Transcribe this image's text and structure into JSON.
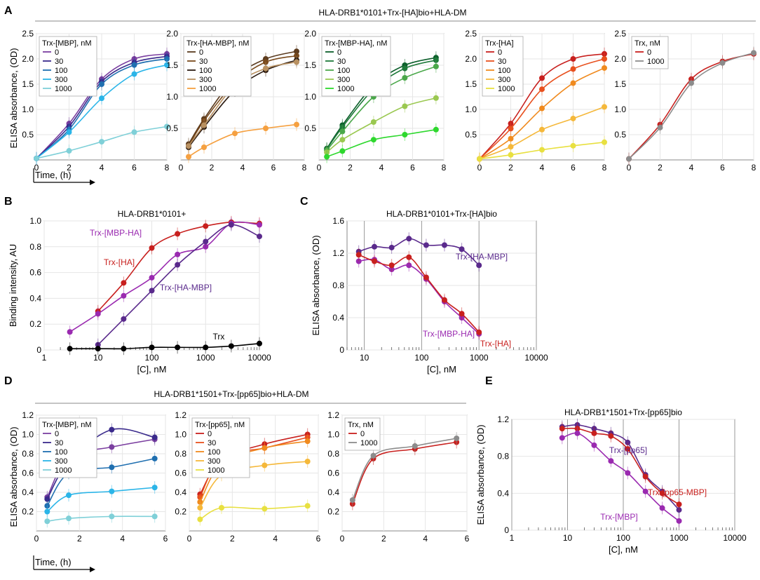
{
  "figure": {
    "panel_labels": [
      "A",
      "B",
      "C",
      "D",
      "E"
    ],
    "group_headers": {
      "A": "HLA-DRB1*0101+Trx-[HA]bio+HLA-DM",
      "D": "HLA-DRB1*1501+Trx-[pp65]bio+HLA-DM"
    },
    "shared_axis_labels": {
      "ylabel_A": "ELISA absorbance, (OD)",
      "ylabel_D": "ELISA absorbance, (OD)",
      "xlabel_A": "Time, (h)",
      "xlabel_D": "Time, (h)"
    }
  },
  "chart_data": [
    {
      "id": "A1",
      "type": "line",
      "title": "",
      "xlabel": "",
      "ylabel": "",
      "xlim": [
        0,
        8
      ],
      "ylim": [
        0,
        2.5
      ],
      "xticks": [
        "0",
        "2",
        "4",
        "6",
        "8"
      ],
      "yticks": [
        "0.5",
        "1.0",
        "1.5",
        "2.0",
        "2.5"
      ],
      "legend_title": "Trx-[MBP], nM",
      "series": [
        {
          "name": "0",
          "color": "#7b3fa0",
          "x": [
            0,
            2,
            4,
            6,
            8
          ],
          "y": [
            0.03,
            0.72,
            1.6,
            2.0,
            2.1
          ]
        },
        {
          "name": "30",
          "color": "#3a2a8c",
          "x": [
            0,
            2,
            4,
            6,
            8
          ],
          "y": [
            0.03,
            0.66,
            1.55,
            1.93,
            2.05
          ]
        },
        {
          "name": "100",
          "color": "#1f6fb0",
          "x": [
            0,
            2,
            4,
            6,
            8
          ],
          "y": [
            0.03,
            0.6,
            1.5,
            1.88,
            2.0
          ]
        },
        {
          "name": "300",
          "color": "#2bb5e8",
          "x": [
            0,
            2,
            4,
            6,
            8
          ],
          "y": [
            0.03,
            0.55,
            1.22,
            1.7,
            1.88
          ]
        },
        {
          "name": "1000",
          "color": "#7fd0d8",
          "x": [
            0,
            2,
            4,
            6,
            8
          ],
          "y": [
            0.03,
            0.18,
            0.36,
            0.55,
            0.66
          ]
        }
      ]
    },
    {
      "id": "A2",
      "type": "line",
      "title": "",
      "xlabel": "",
      "ylabel": "",
      "xlim": [
        0,
        8
      ],
      "ylim": [
        0,
        2.0
      ],
      "xticks": [
        "0",
        "2",
        "4",
        "6",
        "8"
      ],
      "yticks": [
        "0.5",
        "1.0",
        "1.5",
        "2.0"
      ],
      "legend_title": "Trx-[HA-MBP], nM",
      "series": [
        {
          "name": "0",
          "color": "#5a3a1e",
          "x": [
            0.5,
            1.5,
            3.5,
            5.5,
            7.5
          ],
          "y": [
            0.25,
            0.65,
            1.3,
            1.6,
            1.72
          ]
        },
        {
          "name": "30",
          "color": "#7a4a1c",
          "x": [
            0.5,
            1.5,
            3.5,
            5.5,
            7.5
          ],
          "y": [
            0.22,
            0.62,
            1.22,
            1.55,
            1.65
          ]
        },
        {
          "name": "100",
          "color": "#2a1a10",
          "x": [
            0.5,
            1.5,
            3.5,
            5.5,
            7.5
          ],
          "y": [
            0.2,
            0.52,
            1.1,
            1.42,
            1.58
          ]
        },
        {
          "name": "300",
          "color": "#b89060",
          "x": [
            0.5,
            1.5,
            3.5,
            5.5,
            7.5
          ],
          "y": [
            0.22,
            0.55,
            1.18,
            1.45,
            1.55
          ]
        },
        {
          "name": "1000",
          "color": "#f5a040",
          "x": [
            0.5,
            1.5,
            3.5,
            5.5,
            7.5
          ],
          "y": [
            0.05,
            0.2,
            0.42,
            0.5,
            0.56
          ]
        }
      ]
    },
    {
      "id": "A3",
      "type": "line",
      "title": "",
      "xlabel": "",
      "ylabel": "",
      "xlim": [
        0,
        8
      ],
      "ylim": [
        0,
        2.0
      ],
      "xticks": [
        "0",
        "2",
        "4",
        "6",
        "8"
      ],
      "yticks": [
        "0.5",
        "1.0",
        "1.5",
        "2.0"
      ],
      "legend_title": "Trx-[MBP-HA], nM",
      "series": [
        {
          "name": "0",
          "color": "#0b5e2a",
          "x": [
            0.5,
            1.5,
            3.5,
            5.5,
            7.5
          ],
          "y": [
            0.18,
            0.55,
            1.18,
            1.5,
            1.62
          ]
        },
        {
          "name": "30",
          "color": "#1e7a3a",
          "x": [
            0.5,
            1.5,
            3.5,
            5.5,
            7.5
          ],
          "y": [
            0.17,
            0.52,
            1.12,
            1.45,
            1.58
          ]
        },
        {
          "name": "100",
          "color": "#4aa84a",
          "x": [
            0.5,
            1.5,
            3.5,
            5.5,
            7.5
          ],
          "y": [
            0.15,
            0.45,
            1.0,
            1.3,
            1.48
          ]
        },
        {
          "name": "300",
          "color": "#9ac850",
          "x": [
            0.5,
            1.5,
            3.5,
            5.5,
            7.5
          ],
          "y": [
            0.12,
            0.32,
            0.6,
            0.85,
            0.98
          ]
        },
        {
          "name": "1000",
          "color": "#2ed82e",
          "x": [
            0.5,
            1.5,
            3.5,
            5.5,
            7.5
          ],
          "y": [
            0.05,
            0.14,
            0.32,
            0.4,
            0.48
          ]
        }
      ]
    },
    {
      "id": "A4",
      "type": "line",
      "title": "",
      "xlabel": "",
      "ylabel": "",
      "xlim": [
        0,
        8
      ],
      "ylim": [
        0,
        2.5
      ],
      "xticks": [
        "0",
        "2",
        "4",
        "6",
        "8"
      ],
      "yticks": [
        "0.5",
        "1.0",
        "1.5",
        "2.0",
        "2.5"
      ],
      "legend_title": "Trx-[HA]",
      "series": [
        {
          "name": "0",
          "color": "#c8201e",
          "x": [
            0,
            2,
            4,
            6,
            8
          ],
          "y": [
            0.02,
            0.72,
            1.62,
            2.0,
            2.1
          ]
        },
        {
          "name": "30",
          "color": "#e8501e",
          "x": [
            0,
            2,
            4,
            6,
            8
          ],
          "y": [
            0.02,
            0.62,
            1.4,
            1.8,
            2.0
          ]
        },
        {
          "name": "100",
          "color": "#f08a1e",
          "x": [
            0,
            2,
            4,
            6,
            8
          ],
          "y": [
            0.02,
            0.42,
            1.02,
            1.52,
            1.82
          ]
        },
        {
          "name": "300",
          "color": "#f5b83a",
          "x": [
            0,
            2,
            4,
            6,
            8
          ],
          "y": [
            0.02,
            0.26,
            0.6,
            0.82,
            1.05
          ]
        },
        {
          "name": "1000",
          "color": "#e8e040",
          "x": [
            0,
            2,
            4,
            6,
            8
          ],
          "y": [
            0.02,
            0.1,
            0.2,
            0.28,
            0.35
          ]
        }
      ]
    },
    {
      "id": "A5",
      "type": "line",
      "title": "",
      "xlabel": "",
      "ylabel": "",
      "xlim": [
        0,
        8
      ],
      "ylim": [
        0,
        2.5
      ],
      "xticks": [
        "0",
        "2",
        "4",
        "6",
        "8"
      ],
      "yticks": [
        "0.5",
        "1.0",
        "1.5",
        "2.0",
        "2.5"
      ],
      "legend_title": "Trx, nM",
      "series": [
        {
          "name": "0",
          "color": "#c8201e",
          "x": [
            0,
            2,
            4,
            6,
            8
          ],
          "y": [
            0.02,
            0.7,
            1.6,
            1.95,
            2.1
          ]
        },
        {
          "name": "1000",
          "color": "#8c8c8c",
          "x": [
            0,
            2,
            4,
            6,
            8
          ],
          "y": [
            0.02,
            0.64,
            1.52,
            1.92,
            2.12
          ]
        }
      ]
    },
    {
      "id": "B",
      "type": "line",
      "title": "HLA-DRB1*0101+",
      "xlabel": "[C], nM",
      "ylabel": "Binding intensity, AU",
      "xscale": "log",
      "xlim": [
        1,
        10000
      ],
      "ylim": [
        0,
        1.0
      ],
      "xticks": [
        "1",
        "10",
        "100",
        "1000",
        "10000"
      ],
      "yticks": [
        "0",
        "0.2",
        "0.4",
        "0.6",
        "0.8",
        "1.0"
      ],
      "series": [
        {
          "name": "Trx-[HA]",
          "color": "#c8201e",
          "x": [
            10,
            30,
            100,
            300,
            1000,
            3000,
            10000
          ],
          "y": [
            0.3,
            0.52,
            0.79,
            0.9,
            0.96,
            0.99,
            0.98
          ]
        },
        {
          "name": "Trx-[MBP-HA]",
          "color": "#9a2ab0",
          "x": [
            3,
            10,
            30,
            100,
            300,
            1000,
            3000,
            10000
          ],
          "y": [
            0.14,
            0.28,
            0.42,
            0.56,
            0.74,
            0.8,
            0.98,
            0.97
          ]
        },
        {
          "name": "Trx-[HA-MBP]",
          "color": "#5a2a8c",
          "x": [
            10,
            30,
            100,
            300,
            1000,
            3000,
            10000
          ],
          "y": [
            0.04,
            0.24,
            0.46,
            0.66,
            0.84,
            0.97,
            0.88
          ]
        },
        {
          "name": "Trx",
          "color": "#000000",
          "x": [
            3,
            10,
            30,
            100,
            300,
            1000,
            3000,
            10000
          ],
          "y": [
            0.01,
            0.01,
            0.01,
            0.02,
            0.02,
            0.02,
            0.03,
            0.05
          ]
        }
      ]
    },
    {
      "id": "C",
      "type": "line",
      "title": "HLA-DRB1*0101+Trx-[HA]bio",
      "xlabel": "[C], nM",
      "ylabel": "ELISA absorbance, (OD)",
      "xscale": "log",
      "xlim": [
        5,
        10000
      ],
      "ylim": [
        0,
        1.6
      ],
      "xticks": [
        "10",
        "100",
        "1000",
        "10000"
      ],
      "yticks": [
        "0",
        "0.4",
        "0.8",
        "1.2",
        "1.6"
      ],
      "series": [
        {
          "name": "Trx-[HA-MBP]",
          "color": "#5a2a8c",
          "x": [
            8,
            15,
            30,
            60,
            120,
            250,
            500,
            1000
          ],
          "y": [
            1.22,
            1.28,
            1.27,
            1.38,
            1.3,
            1.3,
            1.25,
            1.05
          ]
        },
        {
          "name": "Trx-[MBP-HA]",
          "color": "#9a2ab0",
          "x": [
            8,
            15,
            30,
            60,
            120,
            250,
            500,
            1000
          ],
          "y": [
            1.1,
            1.12,
            1.0,
            1.05,
            0.88,
            0.6,
            0.4,
            0.2
          ]
        },
        {
          "name": "Trx-[HA]",
          "color": "#c8201e",
          "x": [
            8,
            15,
            30,
            60,
            120,
            250,
            500,
            1000
          ],
          "y": [
            1.18,
            1.1,
            1.05,
            1.15,
            0.9,
            0.62,
            0.45,
            0.22
          ]
        }
      ]
    },
    {
      "id": "D1",
      "type": "line",
      "title": "",
      "xlabel": "",
      "ylabel": "",
      "xlim": [
        0,
        6
      ],
      "ylim": [
        0,
        1.2
      ],
      "xticks": [
        "0",
        "2",
        "4",
        "6"
      ],
      "yticks": [
        "0.2",
        "0.4",
        "0.6",
        "0.8",
        "1.0",
        "1.2"
      ],
      "legend_title": "Trx-[MBP], nM",
      "series": [
        {
          "name": "0",
          "color": "#7b3fa0",
          "x": [
            0.5,
            1.5,
            3.5,
            5.5
          ],
          "y": [
            0.35,
            0.76,
            0.87,
            0.95
          ]
        },
        {
          "name": "30",
          "color": "#3a2a8c",
          "x": [
            0.5,
            1.5,
            3.5,
            5.5
          ],
          "y": [
            0.33,
            0.72,
            1.05,
            0.97
          ]
        },
        {
          "name": "100",
          "color": "#1f6fb0",
          "x": [
            0.5,
            1.5,
            3.5,
            5.5
          ],
          "y": [
            0.26,
            0.6,
            0.66,
            0.75
          ]
        },
        {
          "name": "300",
          "color": "#2bb5e8",
          "x": [
            0.5,
            1.5,
            3.5,
            5.5
          ],
          "y": [
            0.2,
            0.37,
            0.41,
            0.45
          ]
        },
        {
          "name": "1000",
          "color": "#7fd0d8",
          "x": [
            0.5,
            1.5,
            3.5,
            5.5
          ],
          "y": [
            0.1,
            0.13,
            0.15,
            0.15
          ]
        }
      ]
    },
    {
      "id": "D2",
      "type": "line",
      "title": "",
      "xlabel": "",
      "ylabel": "",
      "xlim": [
        0,
        6
      ],
      "ylim": [
        0,
        1.2
      ],
      "xticks": [
        "0",
        "2",
        "4",
        "6"
      ],
      "yticks": [
        "0.2",
        "0.4",
        "0.6",
        "0.8",
        "1.0",
        "1.2"
      ],
      "legend_title": "Trx-[pp65], nM",
      "series": [
        {
          "name": "0",
          "color": "#c8201e",
          "x": [
            0.5,
            1.5,
            3.5,
            5.5
          ],
          "y": [
            0.38,
            0.74,
            0.9,
            1.0
          ]
        },
        {
          "name": "30",
          "color": "#e8501e",
          "x": [
            0.5,
            1.5,
            3.5,
            5.5
          ],
          "y": [
            0.35,
            0.76,
            0.86,
            0.97
          ]
        },
        {
          "name": "100",
          "color": "#f08a1e",
          "x": [
            0.5,
            1.5,
            3.5,
            5.5
          ],
          "y": [
            0.3,
            0.7,
            0.86,
            0.93
          ]
        },
        {
          "name": "300",
          "color": "#f5b83a",
          "x": [
            0.5,
            1.5,
            3.5,
            5.5
          ],
          "y": [
            0.24,
            0.58,
            0.68,
            0.72
          ]
        },
        {
          "name": "1000",
          "color": "#e8e040",
          "x": [
            0.5,
            1.5,
            3.5,
            5.5
          ],
          "y": [
            0.12,
            0.24,
            0.23,
            0.26
          ]
        }
      ]
    },
    {
      "id": "D3",
      "type": "line",
      "title": "",
      "xlabel": "",
      "ylabel": "",
      "xlim": [
        0,
        6
      ],
      "ylim": [
        0,
        1.2
      ],
      "xticks": [
        "0",
        "2",
        "4",
        "6"
      ],
      "yticks": [
        "0.2",
        "0.4",
        "0.6",
        "0.8",
        "1.0",
        "1.2"
      ],
      "legend_title": "Trx, nM",
      "series": [
        {
          "name": "0",
          "color": "#c8201e",
          "x": [
            0.5,
            1.5,
            3.5,
            5.5
          ],
          "y": [
            0.28,
            0.75,
            0.85,
            0.92
          ]
        },
        {
          "name": "1000",
          "color": "#8c8c8c",
          "x": [
            0.5,
            1.5,
            3.5,
            5.5
          ],
          "y": [
            0.32,
            0.78,
            0.88,
            0.96
          ]
        }
      ]
    },
    {
      "id": "E",
      "type": "line",
      "title": "HLA-DRB1*1501+Trx-[pp65]bio",
      "xlabel": "[C], nM",
      "ylabel": "ELISA absorbance, (OD)",
      "xscale": "log",
      "xlim": [
        1,
        10000
      ],
      "ylim": [
        0,
        1.2
      ],
      "xticks": [
        "1",
        "10",
        "100",
        "1000",
        "10000"
      ],
      "yticks": [
        "0",
        "0.4",
        "0.8",
        "1.2"
      ],
      "series": [
        {
          "name": "Trx-[pp65]",
          "color": "#5a2a8c",
          "x": [
            8,
            15,
            30,
            60,
            120,
            250,
            500,
            1000
          ],
          "y": [
            1.12,
            1.14,
            1.1,
            1.05,
            0.95,
            0.6,
            0.42,
            0.22
          ]
        },
        {
          "name": "Trx-[pp65-MBP]",
          "color": "#c8201e",
          "x": [
            8,
            15,
            30,
            60,
            120,
            250,
            500,
            1000
          ],
          "y": [
            1.1,
            1.1,
            1.05,
            1.02,
            0.88,
            0.58,
            0.4,
            0.28
          ]
        },
        {
          "name": "Trx-[MBP]",
          "color": "#9a2ab0",
          "x": [
            8,
            15,
            30,
            60,
            120,
            250,
            500,
            1000
          ],
          "y": [
            1.0,
            1.05,
            0.92,
            0.75,
            0.62,
            0.42,
            0.24,
            0.1
          ]
        }
      ]
    }
  ]
}
